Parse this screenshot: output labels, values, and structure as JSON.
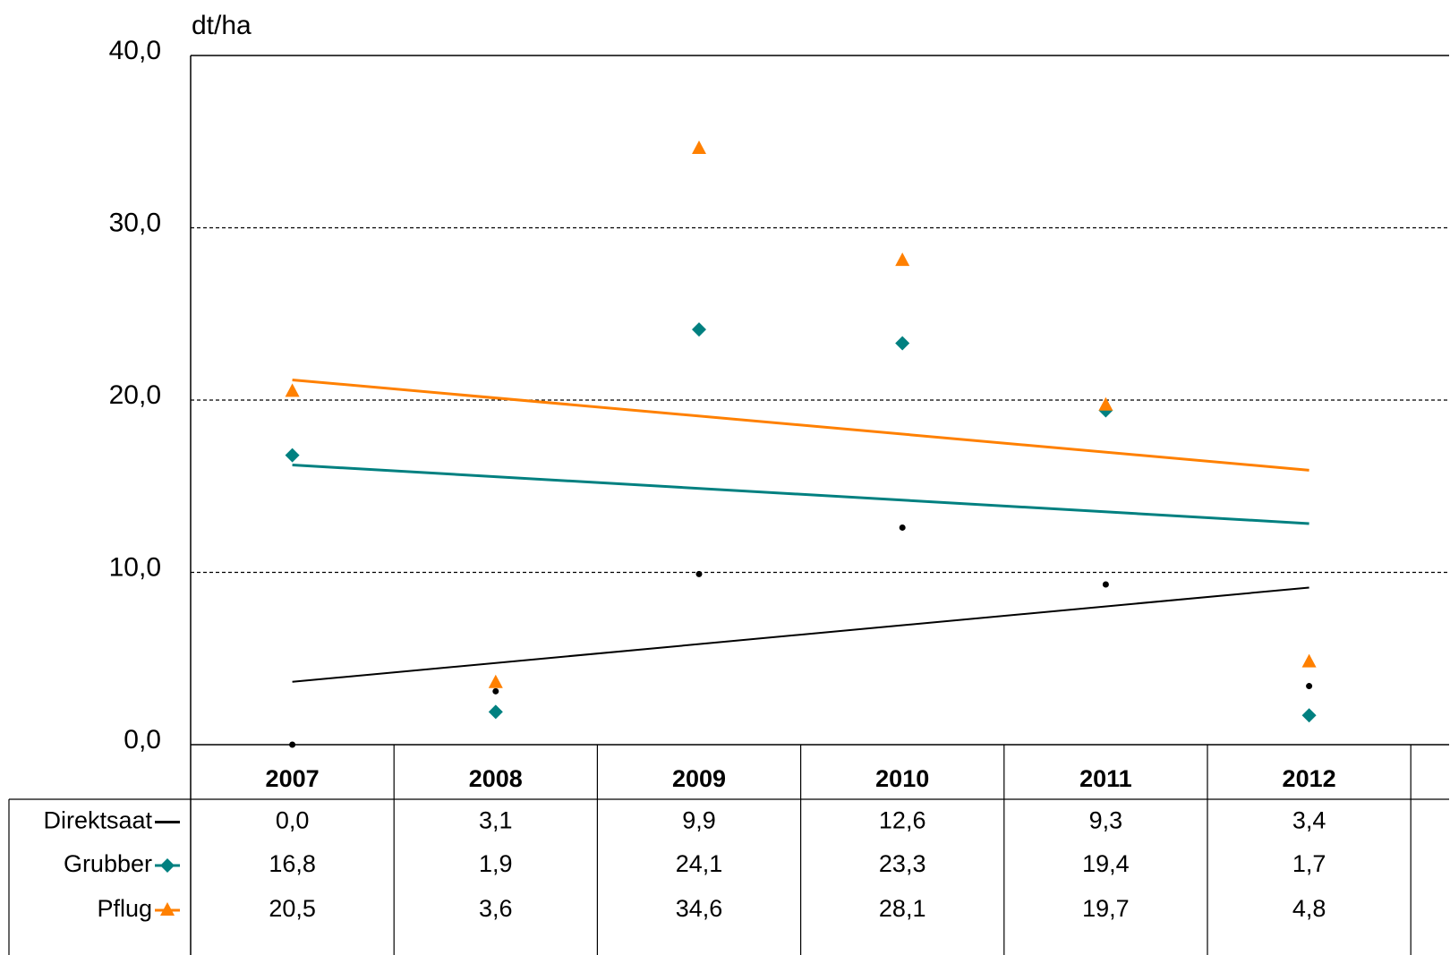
{
  "chart_data": {
    "type": "scatter",
    "y_label": "dt/ha",
    "categories": [
      "2007",
      "2008",
      "2009",
      "2010",
      "2011",
      "2012"
    ],
    "series": [
      {
        "name": "Direktsaat",
        "color": "#000000",
        "marker": "dot",
        "trendline": true,
        "values": [
          0.0,
          3.1,
          9.9,
          12.6,
          9.3,
          3.4
        ],
        "value_labels": [
          "0,0",
          "3,1",
          "9,9",
          "12,6",
          "9,3",
          "3,4"
        ]
      },
      {
        "name": "Grubber",
        "color": "#008080",
        "marker": "diamond",
        "trendline": true,
        "values": [
          16.8,
          1.9,
          24.1,
          23.3,
          19.4,
          1.7
        ],
        "value_labels": [
          "16,8",
          "1,9",
          "24,1",
          "23,3",
          "19,4",
          "1,7"
        ]
      },
      {
        "name": "Pflug",
        "color": "#ff8000",
        "marker": "triangle",
        "trendline": true,
        "values": [
          20.5,
          3.6,
          34.6,
          28.1,
          19.7,
          4.8
        ],
        "value_labels": [
          "20,5",
          "3,6",
          "34,6",
          "28,1",
          "19,7",
          "4,8"
        ]
      }
    ],
    "ylim": [
      0,
      40
    ],
    "yticks": [
      {
        "value": 0,
        "label": "0,0"
      },
      {
        "value": 10,
        "label": "10,0"
      },
      {
        "value": 20,
        "label": "20,0"
      },
      {
        "value": 30,
        "label": "30,0"
      },
      {
        "value": 40,
        "label": "40,0"
      }
    ],
    "grid": true
  }
}
